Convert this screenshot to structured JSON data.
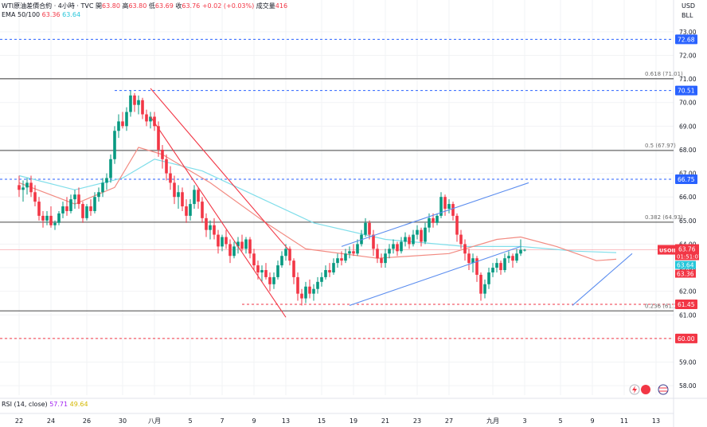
{
  "header": {
    "title": "WTI原油差價合約 · 4小時 · TVC",
    "open_label": "開",
    "open": "63.80",
    "high_label": "高",
    "high": "63.80",
    "low_label": "低",
    "low": "63.69",
    "close_label": "收",
    "close": "63.76",
    "change": "+0.02 (+0.03%)",
    "volume_label": "成交量",
    "volume": "416"
  },
  "ema": {
    "label": "EMA 50/100",
    "value_50": "63.36",
    "value_100": "63.64"
  },
  "rsi": {
    "label": "RSI (14, close)",
    "value": "57.71",
    "ma": "49.64"
  },
  "currency": {
    "top": "USD",
    "unit": "BLL"
  },
  "colors": {
    "up": "#089981",
    "down": "#f23645",
    "ema50": "#f28b82",
    "ema100": "#80deea",
    "channel": "#5b8def",
    "level_blue": "#2962ff",
    "level_gray": "#6b6b6b",
    "level_red": "#f23645"
  },
  "chart_data": {
    "type": "candlestick",
    "y_axis": {
      "min": 57.6,
      "max": 73.4,
      "ticks": [
        "58.00",
        "59.00",
        "60.00",
        "61.00",
        "62.00",
        "63.00",
        "64.00",
        "65.00",
        "66.00",
        "67.00",
        "68.00",
        "69.00",
        "70.00",
        "71.00",
        "72.00",
        "73.00"
      ]
    },
    "x_ticks": [
      {
        "label": "22",
        "i": 0
      },
      {
        "label": "24",
        "i": 8
      },
      {
        "label": "26",
        "i": 17
      },
      {
        "label": "30",
        "i": 26
      },
      {
        "label": "八月",
        "i": 34
      },
      {
        "label": "5",
        "i": 43
      },
      {
        "label": "7",
        "i": 51
      },
      {
        "label": "9",
        "i": 59
      },
      {
        "label": "13",
        "i": 67
      },
      {
        "label": "15",
        "i": 76
      },
      {
        "label": "19",
        "i": 84
      },
      {
        "label": "21",
        "i": 92
      },
      {
        "label": "23",
        "i": 100
      },
      {
        "label": "27",
        "i": 108
      },
      {
        "label": "九月",
        "i": 119
      },
      {
        "label": "3",
        "i": 127
      },
      {
        "label": "5",
        "i": 136
      },
      {
        "label": "9",
        "i": 144
      },
      {
        "label": "11",
        "i": 152
      },
      {
        "label": "13",
        "i": 160
      }
    ],
    "candles": [
      [
        66.5,
        66.9,
        66.0,
        66.3
      ],
      [
        66.3,
        66.7,
        65.8,
        66.4
      ],
      [
        66.4,
        66.8,
        66.1,
        66.6
      ],
      [
        66.6,
        66.9,
        66.0,
        66.2
      ],
      [
        66.2,
        66.5,
        65.6,
        65.8
      ],
      [
        65.8,
        66.0,
        65.0,
        65.2
      ],
      [
        65.2,
        65.4,
        64.7,
        65.0
      ],
      [
        65.0,
        65.4,
        64.8,
        65.2
      ],
      [
        65.2,
        65.6,
        64.7,
        64.8
      ],
      [
        64.8,
        65.0,
        64.6,
        64.9
      ],
      [
        64.9,
        65.4,
        64.8,
        65.3
      ],
      [
        65.3,
        65.8,
        65.1,
        65.6
      ],
      [
        65.6,
        66.0,
        65.2,
        65.4
      ],
      [
        65.4,
        66.1,
        65.3,
        65.9
      ],
      [
        65.9,
        66.3,
        65.5,
        66.1
      ],
      [
        66.1,
        66.4,
        65.5,
        65.7
      ],
      [
        65.7,
        65.8,
        64.9,
        65.1
      ],
      [
        65.1,
        65.7,
        65.0,
        65.6
      ],
      [
        65.6,
        65.9,
        65.2,
        65.4
      ],
      [
        65.4,
        66.2,
        65.3,
        66.0
      ],
      [
        66.0,
        66.4,
        65.8,
        66.2
      ],
      [
        66.2,
        66.8,
        66.0,
        66.6
      ],
      [
        66.6,
        67.0,
        66.3,
        66.8
      ],
      [
        66.8,
        67.8,
        66.6,
        67.6
      ],
      [
        67.6,
        69.0,
        67.4,
        68.8
      ],
      [
        68.8,
        69.5,
        68.5,
        69.2
      ],
      [
        69.2,
        69.6,
        68.9,
        69.0
      ],
      [
        69.0,
        69.8,
        68.8,
        69.6
      ],
      [
        69.6,
        70.5,
        69.4,
        70.3
      ],
      [
        70.3,
        70.4,
        69.6,
        69.9
      ],
      [
        69.9,
        70.3,
        69.5,
        70.1
      ],
      [
        70.1,
        70.2,
        69.3,
        69.5
      ],
      [
        69.5,
        69.7,
        69.0,
        69.2
      ],
      [
        69.2,
        69.6,
        68.9,
        69.4
      ],
      [
        69.4,
        69.6,
        68.8,
        69.0
      ],
      [
        69.0,
        69.2,
        67.7,
        68.0
      ],
      [
        68.0,
        68.2,
        67.2,
        67.6
      ],
      [
        67.6,
        67.8,
        66.7,
        67.0
      ],
      [
        67.0,
        67.3,
        66.3,
        66.6
      ],
      [
        66.6,
        66.9,
        65.7,
        66.0
      ],
      [
        66.0,
        66.5,
        65.5,
        66.2
      ],
      [
        66.2,
        66.4,
        65.4,
        65.6
      ],
      [
        65.6,
        65.9,
        64.9,
        65.2
      ],
      [
        65.2,
        65.9,
        65.0,
        65.7
      ],
      [
        65.7,
        66.5,
        65.5,
        66.3
      ],
      [
        66.3,
        66.4,
        65.5,
        65.8
      ],
      [
        65.8,
        66.0,
        64.9,
        65.1
      ],
      [
        65.1,
        65.3,
        64.3,
        64.6
      ],
      [
        64.6,
        65.0,
        64.2,
        64.8
      ],
      [
        64.8,
        65.1,
        64.2,
        64.4
      ],
      [
        64.4,
        64.6,
        63.6,
        63.9
      ],
      [
        63.9,
        64.4,
        63.7,
        64.3
      ],
      [
        64.3,
        64.6,
        63.8,
        64.0
      ],
      [
        64.0,
        64.2,
        63.2,
        63.5
      ],
      [
        63.5,
        64.1,
        63.4,
        63.9
      ],
      [
        63.9,
        64.3,
        63.6,
        64.1
      ],
      [
        64.1,
        64.4,
        63.7,
        63.8
      ],
      [
        63.8,
        64.3,
        63.6,
        64.2
      ],
      [
        64.2,
        64.3,
        63.4,
        63.6
      ],
      [
        63.6,
        63.8,
        62.9,
        63.1
      ],
      [
        63.1,
        63.3,
        62.5,
        62.8
      ],
      [
        62.8,
        63.1,
        62.4,
        62.9
      ],
      [
        62.9,
        63.2,
        62.5,
        62.6
      ],
      [
        62.6,
        62.8,
        62.0,
        62.3
      ],
      [
        62.3,
        62.8,
        62.1,
        62.6
      ],
      [
        62.6,
        63.3,
        62.5,
        63.1
      ],
      [
        63.1,
        63.7,
        63.0,
        63.5
      ],
      [
        63.5,
        64.0,
        63.3,
        63.8
      ],
      [
        63.8,
        63.9,
        63.1,
        63.3
      ],
      [
        63.3,
        63.4,
        62.3,
        62.6
      ],
      [
        62.6,
        62.8,
        61.6,
        61.9
      ],
      [
        61.9,
        62.1,
        61.4,
        61.7
      ],
      [
        61.7,
        62.4,
        61.5,
        62.2
      ],
      [
        62.2,
        62.5,
        61.7,
        61.9
      ],
      [
        61.9,
        62.3,
        61.6,
        62.1
      ],
      [
        62.1,
        62.6,
        61.9,
        62.4
      ],
      [
        62.4,
        62.8,
        62.2,
        62.6
      ],
      [
        62.6,
        63.1,
        62.5,
        62.9
      ],
      [
        62.9,
        63.2,
        62.6,
        62.8
      ],
      [
        62.8,
        63.4,
        62.7,
        63.2
      ],
      [
        63.2,
        63.6,
        63.0,
        63.4
      ],
      [
        63.4,
        63.7,
        63.1,
        63.3
      ],
      [
        63.3,
        63.8,
        63.2,
        63.6
      ],
      [
        63.6,
        63.9,
        63.4,
        63.7
      ],
      [
        63.7,
        64.0,
        63.5,
        63.6
      ],
      [
        63.6,
        64.2,
        63.5,
        64.0
      ],
      [
        64.0,
        64.6,
        63.9,
        64.4
      ],
      [
        64.4,
        65.1,
        64.3,
        64.9
      ],
      [
        64.9,
        65.0,
        64.2,
        64.4
      ],
      [
        64.4,
        64.6,
        63.5,
        63.8
      ],
      [
        63.8,
        64.0,
        63.2,
        63.4
      ],
      [
        63.4,
        63.6,
        63.0,
        63.2
      ],
      [
        63.2,
        63.8,
        63.0,
        63.6
      ],
      [
        63.6,
        64.0,
        63.4,
        63.8
      ],
      [
        63.8,
        64.2,
        63.6,
        64.0
      ],
      [
        64.0,
        64.1,
        63.5,
        63.7
      ],
      [
        63.7,
        64.3,
        63.6,
        64.1
      ],
      [
        64.1,
        64.5,
        63.9,
        64.3
      ],
      [
        64.3,
        64.4,
        63.8,
        64.0
      ],
      [
        64.0,
        64.6,
        63.9,
        64.4
      ],
      [
        64.4,
        64.8,
        64.2,
        64.6
      ],
      [
        64.6,
        64.7,
        63.9,
        64.1
      ],
      [
        64.1,
        64.9,
        64.0,
        64.7
      ],
      [
        64.7,
        65.3,
        64.5,
        65.1
      ],
      [
        65.1,
        65.3,
        64.7,
        64.9
      ],
      [
        64.9,
        65.3,
        64.8,
        65.2
      ],
      [
        65.2,
        66.2,
        65.1,
        66.0
      ],
      [
        66.0,
        66.1,
        65.2,
        65.5
      ],
      [
        65.5,
        65.9,
        65.3,
        65.7
      ],
      [
        65.7,
        65.8,
        65.0,
        65.2
      ],
      [
        65.2,
        65.3,
        64.1,
        64.4
      ],
      [
        64.4,
        64.6,
        63.8,
        64.0
      ],
      [
        64.0,
        64.2,
        63.3,
        63.6
      ],
      [
        63.6,
        63.8,
        62.9,
        63.2
      ],
      [
        63.2,
        63.6,
        62.8,
        63.4
      ],
      [
        63.4,
        63.5,
        62.4,
        62.7
      ],
      [
        62.7,
        62.8,
        61.6,
        61.9
      ],
      [
        61.9,
        62.5,
        61.7,
        62.3
      ],
      [
        62.3,
        63.0,
        62.1,
        62.8
      ],
      [
        62.8,
        63.2,
        62.6,
        63.0
      ],
      [
        63.0,
        63.4,
        62.8,
        63.2
      ],
      [
        63.2,
        63.3,
        62.7,
        62.9
      ],
      [
        62.9,
        63.6,
        62.8,
        63.4
      ],
      [
        63.4,
        63.7,
        63.2,
        63.5
      ],
      [
        63.5,
        63.6,
        63.0,
        63.3
      ],
      [
        63.3,
        63.8,
        63.2,
        63.6
      ],
      [
        63.6,
        64.2,
        63.5,
        63.76
      ],
      [
        63.76,
        63.8,
        63.69,
        63.76
      ]
    ],
    "ema50": [
      [
        0,
        66.6
      ],
      [
        14,
        65.7
      ],
      [
        24,
        66.4
      ],
      [
        30,
        68.1
      ],
      [
        36,
        67.8
      ],
      [
        48,
        66.6
      ],
      [
        62,
        64.9
      ],
      [
        72,
        63.8
      ],
      [
        90,
        63.4
      ],
      [
        108,
        63.6
      ],
      [
        120,
        64.2
      ],
      [
        126,
        64.3
      ],
      [
        135,
        63.9
      ],
      [
        145,
        63.3
      ],
      [
        150,
        63.36
      ]
    ],
    "ema100": [
      [
        0,
        66.9
      ],
      [
        14,
        66.3
      ],
      [
        26,
        66.8
      ],
      [
        34,
        67.6
      ],
      [
        46,
        67.1
      ],
      [
        60,
        66.0
      ],
      [
        74,
        64.9
      ],
      [
        92,
        64.2
      ],
      [
        112,
        63.9
      ],
      [
        126,
        63.9
      ],
      [
        140,
        63.7
      ],
      [
        150,
        63.64
      ]
    ],
    "trendlines": [
      {
        "name": "downtrend-upper",
        "from": [
          33,
          70.6
        ],
        "to": [
          68,
          63.7
        ],
        "color": "red"
      },
      {
        "name": "downtrend-lower",
        "from": [
          33,
          69.4
        ],
        "to": [
          67,
          60.9
        ],
        "color": "red"
      },
      {
        "name": "uptrend-upper",
        "from": [
          81,
          63.9
        ],
        "to": [
          128,
          66.6
        ],
        "color": "blue"
      },
      {
        "name": "uptrend-lower",
        "from": [
          83,
          61.4
        ],
        "to": [
          126,
          63.9
        ],
        "color": "blue"
      },
      {
        "name": "recent-support",
        "from": [
          139,
          61.4
        ],
        "to": [
          154,
          63.6
        ],
        "color": "blue"
      }
    ],
    "levels": [
      {
        "value": 72.68,
        "style": "dashed",
        "color": "blue",
        "tag": "72.68"
      },
      {
        "value": 70.51,
        "style": "dashed",
        "color": "blue",
        "tag": "70.51",
        "from_i": 24
      },
      {
        "value": 66.75,
        "style": "dashed",
        "color": "blue",
        "tag": "66.75"
      },
      {
        "value": 61.45,
        "style": "dashed",
        "color": "red",
        "tag": "61.45",
        "from_i": 56
      },
      {
        "value": 60.0,
        "style": "dashed",
        "color": "red",
        "tag": "60.00"
      },
      {
        "value": 71.01,
        "style": "solid",
        "color": "gray",
        "label": "0.618 (71.01)"
      },
      {
        "value": 67.97,
        "style": "solid",
        "color": "gray",
        "label": "0.5 (67.97)"
      },
      {
        "value": 64.93,
        "style": "solid",
        "color": "gray",
        "label": "0.382 (64.93)"
      },
      {
        "value": 61.17,
        "style": "solid",
        "color": "gray",
        "label": "0.236 (61.17)"
      }
    ],
    "price_tag": {
      "symbol": "USOIL",
      "price": "63.76",
      "countdown": "01:51:07",
      "value": 63.76
    },
    "ema_tags": [
      {
        "value": 63.64,
        "tag": "63.64",
        "color": "ema100"
      },
      {
        "value": 63.36,
        "tag": "63.36",
        "color": "ema50"
      }
    ]
  }
}
